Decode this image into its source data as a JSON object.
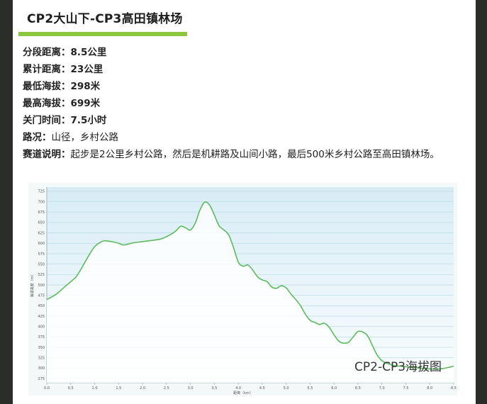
{
  "section": {
    "title": "CP2大山下-CP3高田镇林场"
  },
  "info": {
    "distance": {
      "label": "分段距离：",
      "value": "8.5公里"
    },
    "cumulative": {
      "label": "累计距离：",
      "value": "23公里"
    },
    "min_alt": {
      "label": "最低海拔：",
      "value": "298米"
    },
    "max_alt": {
      "label": "最高海拔：",
      "value": "699米"
    },
    "cutoff": {
      "label": "关门时间：",
      "value": "7.5小时"
    },
    "road": {
      "label": "路况：",
      "value": "山径，乡村公路"
    },
    "desc": {
      "label": "赛道说明：",
      "value": "起步是2公里乡村公路，然后是机耕路及山间小路，最后500米乡村公路至高田镇林场。"
    }
  },
  "chart_data": {
    "type": "area",
    "title": "CP2-CP3海拔图",
    "xlabel": "距离（km）",
    "ylabel": "海拔高度（m）",
    "xlim": [
      0,
      8.5
    ],
    "ylim": [
      265,
      735
    ],
    "x_ticks": [
      "0.0",
      "0.5",
      "1.0",
      "1.5",
      "2.0",
      "2.5",
      "3.0",
      "3.5",
      "4.0",
      "4.5",
      "5.0",
      "5.5",
      "6.0",
      "6.5",
      "7.0",
      "7.5",
      "8.0",
      "8.5"
    ],
    "y_ticks": [
      "275",
      "300",
      "325",
      "350",
      "375",
      "400",
      "425",
      "450",
      "475",
      "500",
      "525",
      "550",
      "575",
      "600",
      "625",
      "650",
      "675",
      "700",
      "725"
    ],
    "x": [
      0.0,
      0.2,
      0.4,
      0.6,
      0.7,
      0.8,
      0.9,
      1.0,
      1.1,
      1.2,
      1.3,
      1.4,
      1.5,
      1.6,
      1.7,
      1.8,
      2.0,
      2.2,
      2.4,
      2.6,
      2.7,
      2.8,
      2.9,
      3.0,
      3.1,
      3.2,
      3.3,
      3.4,
      3.5,
      3.6,
      3.7,
      3.8,
      3.9,
      4.0,
      4.1,
      4.2,
      4.3,
      4.4,
      4.5,
      4.6,
      4.7,
      4.8,
      4.9,
      5.0,
      5.1,
      5.2,
      5.3,
      5.4,
      5.5,
      5.6,
      5.7,
      5.8,
      5.9,
      6.0,
      6.1,
      6.2,
      6.3,
      6.4,
      6.5,
      6.6,
      6.7,
      6.8,
      6.9,
      7.0,
      7.1,
      7.2,
      7.3,
      7.4,
      7.6,
      7.8,
      8.0,
      8.2,
      8.4,
      8.5
    ],
    "y": [
      465,
      478,
      498,
      518,
      535,
      555,
      575,
      592,
      601,
      606,
      605,
      603,
      600,
      596,
      598,
      601,
      604,
      607,
      611,
      622,
      630,
      641,
      637,
      632,
      648,
      680,
      699,
      692,
      668,
      642,
      632,
      620,
      590,
      555,
      545,
      548,
      536,
      520,
      512,
      508,
      495,
      492,
      498,
      493,
      478,
      465,
      450,
      430,
      415,
      410,
      405,
      408,
      398,
      380,
      365,
      360,
      362,
      375,
      388,
      387,
      378,
      355,
      332,
      318,
      312,
      308,
      305,
      305,
      302,
      300,
      298,
      298,
      302,
      305
    ]
  }
}
